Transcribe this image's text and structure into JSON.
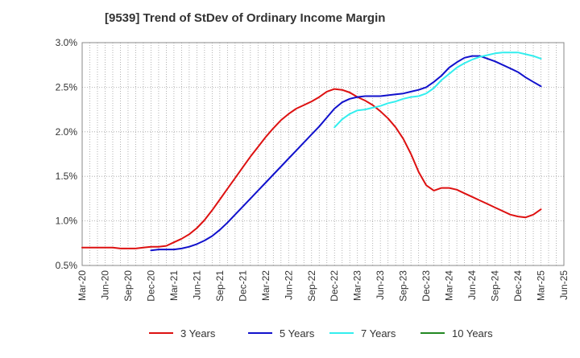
{
  "chart_data": {
    "type": "line",
    "title": "[9539]  Trend of StDev of Ordinary Income Margin",
    "xlabel": "",
    "ylabel": "",
    "x_tick_labels": [
      "Mar-20",
      "Jun-20",
      "Sep-20",
      "Dec-20",
      "Mar-21",
      "Jun-21",
      "Sep-21",
      "Dec-21",
      "Mar-22",
      "Jun-22",
      "Sep-22",
      "Dec-22",
      "Mar-23",
      "Jun-23",
      "Sep-23",
      "Dec-23",
      "Mar-24",
      "Jun-24",
      "Sep-24",
      "Dec-24",
      "Mar-25",
      "Jun-25"
    ],
    "y_tick_labels": [
      "0.5%",
      "1.0%",
      "1.5%",
      "2.0%",
      "2.5%",
      "3.0%"
    ],
    "ylim": [
      0.5,
      3.0
    ],
    "grid": true,
    "legend_position": "bottom",
    "series": [
      {
        "name": "3 Years",
        "color": "#dd1111",
        "x": [
          "Mar-20",
          "Apr-20",
          "May-20",
          "Jun-20",
          "Jul-20",
          "Aug-20",
          "Sep-20",
          "Oct-20",
          "Nov-20",
          "Dec-20",
          "Jan-21",
          "Feb-21",
          "Mar-21",
          "Apr-21",
          "May-21",
          "Jun-21",
          "Jul-21",
          "Aug-21",
          "Sep-21",
          "Oct-21",
          "Nov-21",
          "Dec-21",
          "Jan-22",
          "Feb-22",
          "Mar-22",
          "Apr-22",
          "May-22",
          "Jun-22",
          "Jul-22",
          "Aug-22",
          "Sep-22",
          "Oct-22",
          "Nov-22",
          "Dec-22",
          "Jan-23",
          "Feb-23",
          "Mar-23",
          "Apr-23",
          "May-23",
          "Jun-23",
          "Jul-23",
          "Aug-23",
          "Sep-23",
          "Oct-23",
          "Nov-23",
          "Dec-23",
          "Jan-24",
          "Feb-24",
          "Mar-24",
          "Apr-24",
          "May-24",
          "Jun-24",
          "Jul-24",
          "Aug-24",
          "Sep-24",
          "Oct-24",
          "Nov-24",
          "Dec-24",
          "Jan-25",
          "Feb-25",
          "Mar-25"
        ],
        "values": [
          0.7,
          0.7,
          0.7,
          0.7,
          0.7,
          0.69,
          0.69,
          0.69,
          0.7,
          0.71,
          0.71,
          0.72,
          0.76,
          0.8,
          0.85,
          0.92,
          1.01,
          1.12,
          1.24,
          1.36,
          1.48,
          1.6,
          1.72,
          1.83,
          1.94,
          2.04,
          2.13,
          2.2,
          2.26,
          2.3,
          2.34,
          2.39,
          2.45,
          2.48,
          2.47,
          2.44,
          2.39,
          2.35,
          2.3,
          2.23,
          2.15,
          2.05,
          1.92,
          1.75,
          1.55,
          1.4,
          1.34,
          1.37,
          1.37,
          1.35,
          1.31,
          1.27,
          1.23,
          1.19,
          1.15,
          1.11,
          1.07,
          1.05,
          1.04,
          1.07,
          1.13
        ]
      },
      {
        "name": "5 Years",
        "color": "#1111cc",
        "x": [
          "Dec-20",
          "Jan-21",
          "Feb-21",
          "Mar-21",
          "Apr-21",
          "May-21",
          "Jun-21",
          "Jul-21",
          "Aug-21",
          "Sep-21",
          "Oct-21",
          "Nov-21",
          "Dec-21",
          "Jan-22",
          "Feb-22",
          "Mar-22",
          "Apr-22",
          "May-22",
          "Jun-22",
          "Jul-22",
          "Aug-22",
          "Sep-22",
          "Oct-22",
          "Nov-22",
          "Dec-22",
          "Jan-23",
          "Feb-23",
          "Mar-23",
          "Apr-23",
          "May-23",
          "Jun-23",
          "Jul-23",
          "Aug-23",
          "Sep-23",
          "Oct-23",
          "Nov-23",
          "Dec-23",
          "Jan-24",
          "Feb-24",
          "Mar-24",
          "Apr-24",
          "May-24",
          "Jun-24",
          "Jul-24",
          "Aug-24",
          "Sep-24",
          "Oct-24",
          "Nov-24",
          "Dec-24",
          "Jan-25",
          "Feb-25",
          "Mar-25"
        ],
        "values": [
          0.67,
          0.68,
          0.68,
          0.68,
          0.69,
          0.71,
          0.74,
          0.78,
          0.83,
          0.9,
          0.98,
          1.07,
          1.16,
          1.25,
          1.34,
          1.43,
          1.52,
          1.61,
          1.7,
          1.79,
          1.88,
          1.97,
          2.06,
          2.16,
          2.26,
          2.33,
          2.37,
          2.39,
          2.4,
          2.4,
          2.4,
          2.41,
          2.42,
          2.43,
          2.45,
          2.47,
          2.5,
          2.56,
          2.63,
          2.72,
          2.78,
          2.83,
          2.85,
          2.85,
          2.82,
          2.79,
          2.75,
          2.71,
          2.67,
          2.61,
          2.56,
          2.51
        ]
      },
      {
        "name": "7 Years",
        "color": "#33eeee",
        "x": [
          "Dec-22",
          "Jan-23",
          "Feb-23",
          "Mar-23",
          "Apr-23",
          "May-23",
          "Jun-23",
          "Jul-23",
          "Aug-23",
          "Sep-23",
          "Oct-23",
          "Nov-23",
          "Dec-23",
          "Jan-24",
          "Feb-24",
          "Mar-24",
          "Apr-24",
          "May-24",
          "Jun-24",
          "Jul-24",
          "Aug-24",
          "Sep-24",
          "Oct-24",
          "Nov-24",
          "Dec-24",
          "Jan-25",
          "Feb-25",
          "Mar-25"
        ],
        "values": [
          2.05,
          2.14,
          2.2,
          2.24,
          2.25,
          2.27,
          2.29,
          2.32,
          2.34,
          2.37,
          2.39,
          2.4,
          2.43,
          2.49,
          2.58,
          2.65,
          2.72,
          2.77,
          2.81,
          2.84,
          2.86,
          2.88,
          2.89,
          2.89,
          2.89,
          2.87,
          2.85,
          2.82
        ]
      },
      {
        "name": "10 Years",
        "color": "#228822",
        "x": [],
        "values": []
      }
    ]
  }
}
